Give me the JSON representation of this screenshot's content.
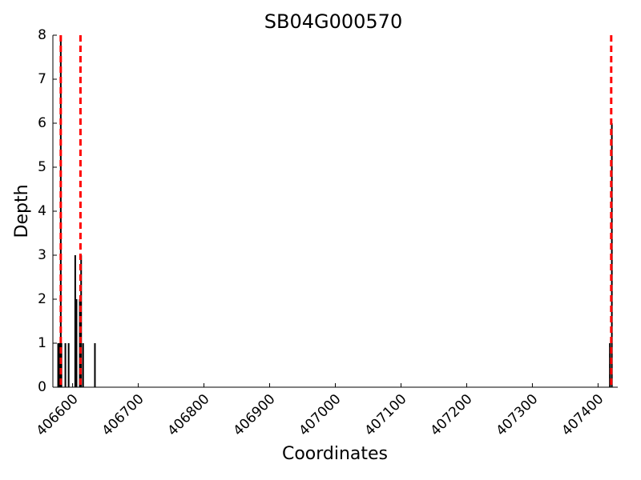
{
  "chart_data": {
    "type": "bar",
    "title": "SB04G000570",
    "x_label": "Coordinates",
    "y_label": "Depth",
    "x": [
      406578,
      406580,
      406582,
      406583,
      406589,
      406594,
      406604,
      406606,
      406611,
      406613,
      406616,
      406634,
      407418,
      407421
    ],
    "values": [
      1,
      1,
      8,
      1,
      1,
      1,
      3,
      2,
      2,
      3,
      1,
      1,
      1,
      6
    ],
    "color": "#000000",
    "vlines": {
      "x": [
        406582,
        406612,
        407420
      ],
      "color": "#ff0000"
    },
    "xlim": [
      406570,
      407430
    ],
    "xticks": [
      406600,
      406700,
      406800,
      406900,
      407000,
      407100,
      407200,
      407300,
      407400
    ],
    "ylim": [
      0,
      8
    ],
    "yticks": [
      0,
      1,
      2,
      3,
      4,
      5,
      6,
      7,
      8
    ]
  }
}
